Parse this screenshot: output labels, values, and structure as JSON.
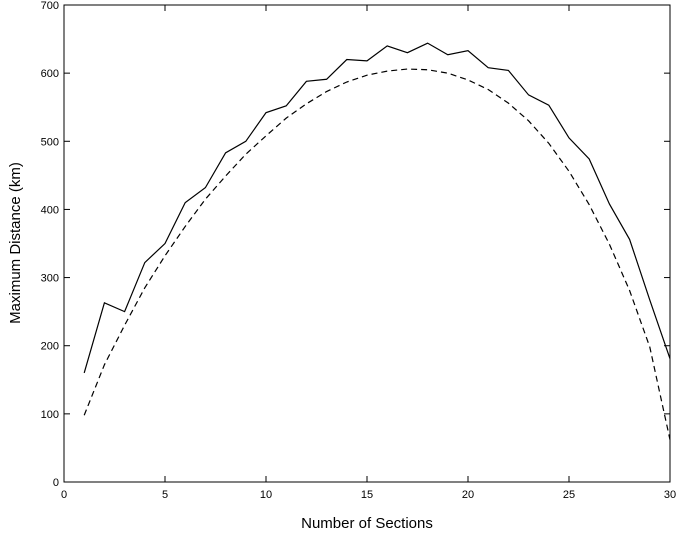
{
  "chart_data": {
    "type": "line",
    "title": "",
    "xlabel": "Number of Sections",
    "ylabel": "Maximum Distance (km)",
    "xlim": [
      0,
      30
    ],
    "ylim": [
      0,
      700
    ],
    "xticks": [
      0,
      5,
      10,
      15,
      20,
      25,
      30
    ],
    "yticks": [
      0,
      100,
      200,
      300,
      400,
      500,
      600,
      700
    ],
    "grid": false,
    "legend": "none",
    "series": [
      {
        "style": "solid",
        "color": "#000000",
        "x": [
          1,
          2,
          3,
          4,
          5,
          6,
          7,
          8,
          9,
          10,
          11,
          12,
          13,
          14,
          15,
          16,
          17,
          18,
          19,
          20,
          21,
          22,
          23,
          24,
          25,
          26,
          27,
          28,
          29,
          30
        ],
        "y": [
          160,
          263,
          250,
          322,
          350,
          410,
          432,
          483,
          500,
          542,
          552,
          588,
          591,
          620,
          618,
          640,
          630,
          644,
          627,
          633,
          608,
          604,
          568,
          553,
          505,
          474,
          408,
          356,
          267,
          181
        ]
      },
      {
        "style": "dashed",
        "color": "#000000",
        "x": [
          1,
          2,
          3,
          4,
          5,
          6,
          7,
          8,
          9,
          10,
          11,
          12,
          13,
          14,
          15,
          16,
          17,
          18,
          19,
          20,
          21,
          22,
          23,
          24,
          25,
          26,
          27,
          28,
          29,
          30
        ],
        "y": [
          98,
          172,
          230,
          285,
          332,
          375,
          415,
          449,
          481,
          508,
          534,
          555,
          573,
          587,
          597,
          603,
          606,
          605,
          600,
          590,
          576,
          556,
          530,
          497,
          456,
          407,
          349,
          281,
          198,
          62
        ]
      }
    ]
  }
}
